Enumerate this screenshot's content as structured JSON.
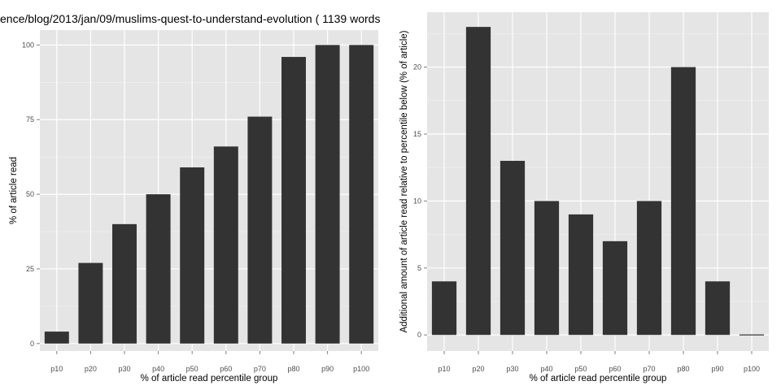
{
  "chart_data": [
    {
      "type": "bar",
      "title": "ence/blog/2013/jan/09/muslims-quest-to-understand-evolution ( 1139 words",
      "xlabel": "% of article read percentile group",
      "ylabel": "% of article read",
      "categories": [
        "p10",
        "p20",
        "p30",
        "p40",
        "p50",
        "p60",
        "p70",
        "p80",
        "p90",
        "p100"
      ],
      "values": [
        4,
        27,
        40,
        50,
        59,
        66,
        76,
        96,
        100,
        100
      ],
      "ylim": [
        -2.5,
        105
      ],
      "yticks": [
        0,
        25,
        50,
        75,
        100
      ],
      "grid": true,
      "bar_color": "#333333",
      "panel_color": "#e5e5e5"
    },
    {
      "type": "bar",
      "title": "",
      "xlabel": "% of article read percentile group",
      "ylabel": "Additional amount of article read relative to percentile below (% of article)",
      "categories": [
        "p10",
        "p20",
        "p30",
        "p40",
        "p50",
        "p60",
        "p70",
        "p80",
        "p90",
        "p100"
      ],
      "values": [
        4,
        23,
        13,
        10,
        9,
        7,
        10,
        20,
        4,
        0
      ],
      "ylim": [
        -1.2,
        24.1
      ],
      "yticks": [
        0,
        5,
        10,
        15,
        20
      ],
      "grid": true,
      "bar_color": "#333333",
      "panel_color": "#e5e5e5"
    }
  ]
}
